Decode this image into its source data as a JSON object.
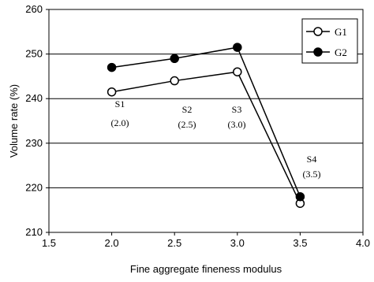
{
  "chart_data": {
    "type": "line",
    "title": "",
    "xlabel": "Fine aggregate fineness modulus",
    "ylabel": "Volume rate (%)",
    "xlim": [
      1.5,
      4.0
    ],
    "ylim": [
      210,
      260
    ],
    "xticks": [
      "1.5",
      "2.0",
      "2.5",
      "3.0",
      "3.5",
      "4.0"
    ],
    "yticks": [
      "210",
      "220",
      "230",
      "240",
      "250",
      "260"
    ],
    "grid": "horizontal",
    "legend_position": "top-right",
    "series": [
      {
        "name": "G1",
        "marker": "open-circle",
        "x": [
          2.0,
          2.5,
          3.0,
          3.5
        ],
        "y": [
          241.5,
          244.0,
          246.0,
          216.5
        ]
      },
      {
        "name": "G2",
        "marker": "filled-circle",
        "x": [
          2.0,
          2.5,
          3.0,
          3.5
        ],
        "y": [
          247.0,
          249.0,
          251.5,
          218.0
        ]
      }
    ],
    "annotations": [
      {
        "label": "S1",
        "value": "(2.0)"
      },
      {
        "label": "S2",
        "value": "(2.5)"
      },
      {
        "label": "S3",
        "value": "(3.0)"
      },
      {
        "label": "S4",
        "value": "(3.5)"
      }
    ]
  }
}
